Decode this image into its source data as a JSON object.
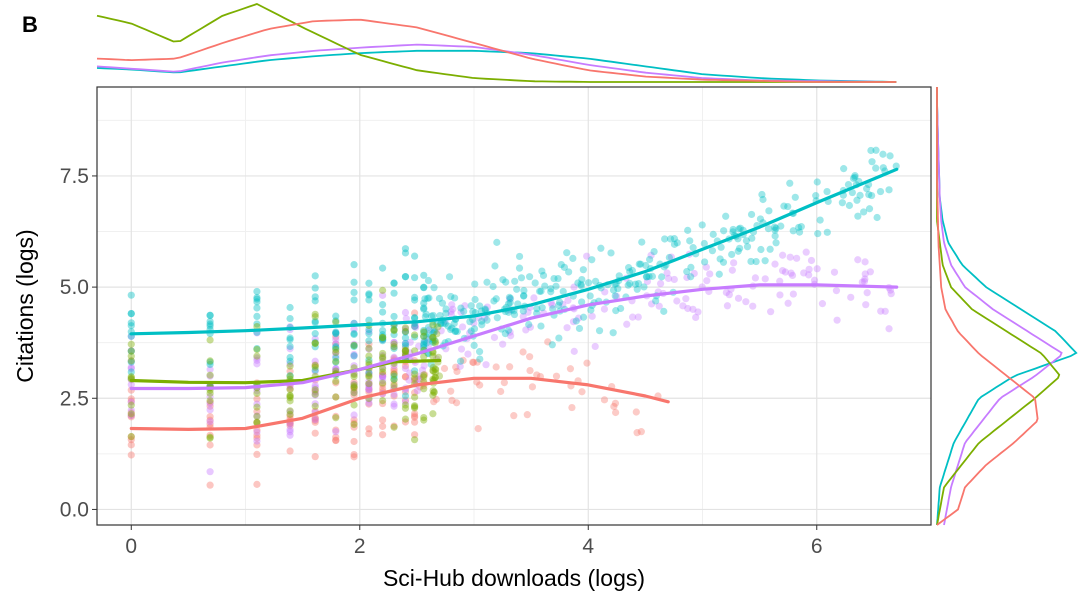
{
  "panel_label": "B",
  "chart_data": {
    "type": "scatter",
    "title": "",
    "xlabel": "Sci-Hub downloads (logs)",
    "ylabel": "Citations (logs)",
    "xlim": [
      -0.3,
      7.0
    ],
    "ylim": [
      -0.35,
      9.5
    ],
    "x_ticks": [
      0,
      2,
      4,
      6
    ],
    "x_tick_labels": [
      "0",
      "2",
      "4",
      "6"
    ],
    "y_ticks": [
      0,
      2.5,
      5,
      7.5
    ],
    "y_tick_labels": [
      "0.0",
      "2.5",
      "5.0",
      "7.5"
    ],
    "grid": true,
    "legend": "none",
    "marginal_density": {
      "top": true,
      "right": true
    },
    "series": [
      {
        "color": "#00BFC4",
        "smooth": {
          "x": [
            0,
            0.5,
            1,
            1.5,
            2,
            2.5,
            3,
            3.5,
            4,
            4.5,
            5,
            5.5,
            6,
            6.7
          ],
          "y": [
            3.95,
            3.98,
            4.02,
            4.08,
            4.15,
            4.22,
            4.35,
            4.6,
            4.95,
            5.35,
            5.85,
            6.35,
            6.9,
            7.65
          ]
        },
        "points": {
          "x_levels": [
            0,
            0.69,
            1.1,
            1.39,
            1.61,
            1.79,
            1.95,
            2.08,
            2.2,
            2.3,
            2.4,
            2.48,
            2.56
          ],
          "x_range": [
            0,
            6.7
          ],
          "y_range": [
            2.5,
            9.2
          ]
        },
        "density_x": {
          "x": [
            -0.3,
            0,
            0.4,
            0.8,
            1.2,
            1.6,
            2.0,
            2.5,
            3.0,
            3.5,
            4.0,
            4.5,
            5.0,
            5.5,
            6.0,
            6.7
          ],
          "d": [
            0.18,
            0.16,
            0.12,
            0.2,
            0.28,
            0.33,
            0.37,
            0.4,
            0.4,
            0.37,
            0.3,
            0.2,
            0.1,
            0.05,
            0.02,
            0.0
          ]
        },
        "density_y": {
          "y": [
            -0.35,
            0.5,
            1.5,
            2.5,
            3.0,
            3.5,
            4.0,
            4.5,
            5.0,
            5.5,
            6.0,
            6.5,
            7.0,
            8.0,
            9.2
          ],
          "d": [
            0.0,
            0.02,
            0.12,
            0.3,
            0.55,
            1.0,
            0.85,
            0.6,
            0.35,
            0.18,
            0.08,
            0.04,
            0.02,
            0.01,
            0.0
          ]
        }
      },
      {
        "color": "#C77CFF",
        "smooth": {
          "x": [
            0,
            0.5,
            1,
            1.5,
            2,
            2.5,
            3,
            3.5,
            4,
            4.5,
            5,
            5.5,
            6,
            6.7
          ],
          "y": [
            2.72,
            2.72,
            2.74,
            2.85,
            3.15,
            3.5,
            3.9,
            4.3,
            4.6,
            4.8,
            4.95,
            5.05,
            5.05,
            5.0
          ]
        },
        "points": {
          "x_levels": [
            0,
            0.69,
            1.1,
            1.39,
            1.61,
            1.79,
            1.95,
            2.08,
            2.2,
            2.3,
            2.4
          ],
          "x_range": [
            0,
            6.7
          ],
          "y_range": [
            -0.35,
            8.0
          ]
        },
        "density_x": {
          "x": [
            -0.3,
            0,
            0.4,
            0.8,
            1.2,
            1.6,
            2.0,
            2.5,
            3.0,
            3.5,
            4.0,
            4.5,
            5.0,
            5.5,
            6.0,
            6.7
          ],
          "d": [
            0.2,
            0.17,
            0.13,
            0.25,
            0.34,
            0.4,
            0.44,
            0.48,
            0.45,
            0.35,
            0.22,
            0.12,
            0.05,
            0.02,
            0.01,
            0.0
          ]
        },
        "density_y": {
          "y": [
            -0.35,
            0.5,
            1.5,
            2.5,
            3.0,
            3.5,
            4.0,
            4.5,
            5.0,
            5.5,
            6.0,
            6.5,
            7.0,
            8.0,
            9.2
          ],
          "d": [
            0.05,
            0.1,
            0.2,
            0.45,
            0.7,
            0.9,
            0.65,
            0.4,
            0.2,
            0.1,
            0.05,
            0.03,
            0.02,
            0.01,
            0.0
          ]
        }
      },
      {
        "color": "#7CAE00",
        "smooth": {
          "x": [
            0,
            0.5,
            1,
            1.5,
            2,
            2.3,
            2.7
          ],
          "y": [
            2.9,
            2.86,
            2.85,
            2.9,
            3.15,
            3.32,
            3.35
          ]
        },
        "points": {
          "x_levels": [
            0,
            0.69,
            1.1,
            1.39,
            1.61,
            1.79,
            1.95,
            2.08,
            2.2,
            2.3,
            2.4,
            2.48,
            2.56,
            2.64
          ],
          "x_range": [
            0,
            2.7
          ],
          "y_range": [
            1.5,
            5.0
          ]
        },
        "density_x": {
          "x": [
            -0.3,
            0,
            0.4,
            0.8,
            1.1,
            1.5,
            2.0,
            2.5,
            3.0,
            3.5,
            4.0,
            5.0,
            6.0,
            6.7
          ],
          "d": [
            0.85,
            0.75,
            0.5,
            0.85,
            1.0,
            0.7,
            0.35,
            0.15,
            0.05,
            0.01,
            0.0,
            0.0,
            0.0,
            0.0
          ]
        },
        "density_y": {
          "y": [
            -0.35,
            0.5,
            1.5,
            2.5,
            3.0,
            3.5,
            4.0,
            4.5,
            5.0,
            5.5,
            6.0,
            6.5,
            7.0,
            8.0,
            9.2
          ],
          "d": [
            0.0,
            0.05,
            0.3,
            0.7,
            0.88,
            0.75,
            0.5,
            0.25,
            0.1,
            0.04,
            0.02,
            0.0,
            0.0,
            0.0,
            0.0
          ]
        }
      },
      {
        "color": "#F8766D",
        "smooth": {
          "x": [
            0,
            0.5,
            1,
            1.5,
            2,
            2.5,
            3,
            3.5,
            4,
            4.5,
            4.7
          ],
          "y": [
            1.82,
            1.8,
            1.82,
            2.05,
            2.5,
            2.8,
            2.95,
            2.95,
            2.8,
            2.55,
            2.42
          ]
        },
        "points": {
          "x_levels": [
            0,
            0.69,
            1.1,
            1.39,
            1.61,
            1.79,
            1.95,
            2.08,
            2.2,
            2.3,
            2.4,
            2.48
          ],
          "x_range": [
            0,
            4.7
          ],
          "y_range": [
            -0.35,
            5.0
          ]
        },
        "density_x": {
          "x": [
            -0.3,
            0,
            0.4,
            0.8,
            1.2,
            1.6,
            2.0,
            2.5,
            3.0,
            3.5,
            4.0,
            4.5,
            5.0,
            6.0,
            6.7
          ],
          "d": [
            0.3,
            0.28,
            0.3,
            0.5,
            0.68,
            0.78,
            0.8,
            0.7,
            0.5,
            0.3,
            0.15,
            0.07,
            0.03,
            0.0,
            0.0
          ]
        },
        "density_y": {
          "y": [
            -0.35,
            0.0,
            0.5,
            1.0,
            1.5,
            2.0,
            2.5,
            3.0,
            3.5,
            4.0,
            4.5,
            5.0,
            6.0,
            7.5,
            9.2
          ],
          "d": [
            0.0,
            0.15,
            0.2,
            0.35,
            0.55,
            0.72,
            0.7,
            0.5,
            0.3,
            0.15,
            0.06,
            0.03,
            0.01,
            0.0,
            0.0
          ]
        }
      }
    ]
  }
}
